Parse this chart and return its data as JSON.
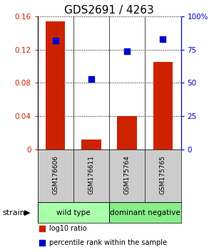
{
  "title": "GDS2691 / 4263",
  "samples": [
    "GSM176606",
    "GSM176611",
    "GSM175764",
    "GSM175765"
  ],
  "log10_ratio": [
    0.154,
    0.012,
    0.04,
    0.105
  ],
  "percentile_rank": [
    82,
    53,
    74,
    83
  ],
  "bar_color": "#cc2200",
  "dot_color": "#0000cc",
  "ylim_left": [
    0,
    0.16
  ],
  "ylim_right": [
    0,
    100
  ],
  "yticks_left": [
    0,
    0.04,
    0.08,
    0.12,
    0.16
  ],
  "yticks_right": [
    0,
    25,
    50,
    75,
    100
  ],
  "ytick_labels_left": [
    "0",
    "0.04",
    "0.08",
    "0.12",
    "0.16"
  ],
  "ytick_labels_right": [
    "0",
    "25",
    "50",
    "75",
    "100%"
  ],
  "groups": [
    {
      "label": "wild type",
      "indices": [
        0,
        1
      ],
      "color": "#aaffaa"
    },
    {
      "label": "dominant negative",
      "indices": [
        2,
        3
      ],
      "color": "#88ee88"
    }
  ],
  "strain_label": "strain",
  "legend_items": [
    {
      "color": "#cc2200",
      "label": "log10 ratio"
    },
    {
      "color": "#0000cc",
      "label": "percentile rank within the sample"
    }
  ],
  "bar_width": 0.55,
  "dot_size": 35,
  "background_color": "#ffffff",
  "title_fontsize": 11,
  "tick_fontsize": 7.5,
  "sample_fontsize": 6.5,
  "group_fontsize": 7.5,
  "legend_fontsize": 7
}
